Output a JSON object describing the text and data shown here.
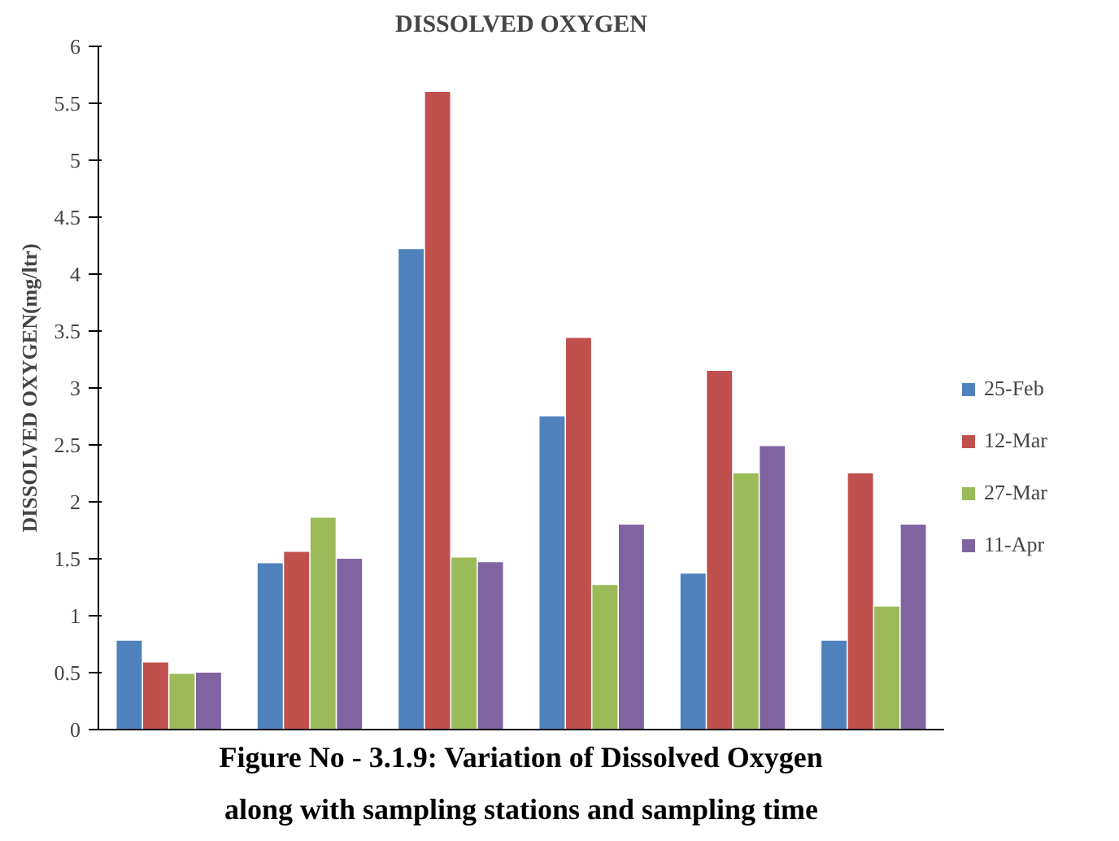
{
  "chart_data": {
    "type": "bar",
    "title": "DISSOLVED OXYGEN",
    "ylabel": "DISSOLVED OXYGEN(mg/ltr)",
    "categories": [
      null,
      null,
      null,
      null,
      null,
      null
    ],
    "series": [
      {
        "name": "25-Feb",
        "color": "#4f81bd",
        "values": [
          0.78,
          1.46,
          4.22,
          2.75,
          1.37,
          0.78
        ]
      },
      {
        "name": "12-Mar",
        "color": "#c0504d",
        "values": [
          0.59,
          1.56,
          5.6,
          3.44,
          3.15,
          2.25
        ]
      },
      {
        "name": "27-Mar",
        "color": "#9bbb59",
        "values": [
          0.49,
          1.86,
          1.51,
          1.27,
          2.25,
          1.08
        ]
      },
      {
        "name": "11-Apr",
        "color": "#8064a2",
        "values": [
          0.5,
          1.5,
          1.47,
          1.8,
          2.49,
          1.8
        ]
      }
    ],
    "ylim": [
      0,
      6
    ],
    "yticks": [
      0,
      0.5,
      1,
      1.5,
      2,
      2.5,
      3,
      3.5,
      4,
      4.5,
      5,
      5.5,
      6
    ],
    "grid": false,
    "legend": "right",
    "annotations": [
      "Figure No - 3.1.9: Variation of Dissolved Oxygen\nalong with sampling stations and sampling time"
    ]
  }
}
